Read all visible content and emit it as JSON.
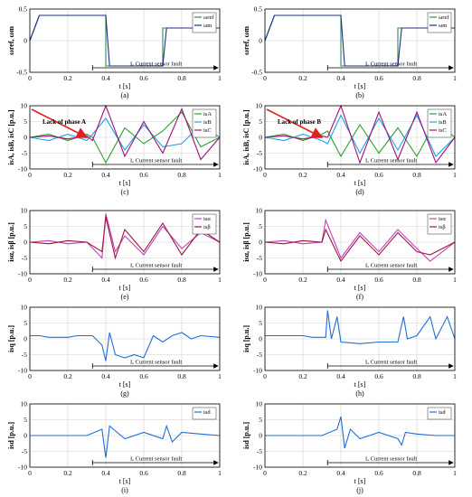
{
  "fault_label": "Iₐ Current sensor fault",
  "chart_data": [
    {
      "panel": "(a)",
      "type": "line",
      "xlabel": "t [s]",
      "ylabel": "ωref, ωm",
      "xlim": [
        0,
        1
      ],
      "ylim": [
        -0.5,
        0.5
      ],
      "xticks": [
        "0",
        "0.2",
        "0.4",
        "0.6",
        "0.8",
        "1"
      ],
      "yticks": [
        "0.5",
        "0",
        "-0.5"
      ],
      "legend": [
        "ωref",
        "ωm"
      ],
      "legend_position": "top-right",
      "annotation": "Iₐ Current sensor fault",
      "fault_interval": [
        0.33,
        1.0
      ],
      "series": [
        {
          "name": "ωref",
          "color": "#2e8b57",
          "x": [
            0,
            0.05,
            0.4,
            0.4,
            0.7,
            0.7,
            1.0
          ],
          "y": [
            0,
            0.4,
            0.4,
            -0.4,
            -0.4,
            0.2,
            0.2
          ]
        },
        {
          "name": "ωm",
          "color": "#1f2d8a",
          "x": [
            0,
            0.05,
            0.4,
            0.42,
            0.7,
            0.72,
            1.0
          ],
          "y": [
            0,
            0.4,
            0.4,
            -0.4,
            -0.4,
            0.2,
            0.2
          ]
        }
      ]
    },
    {
      "panel": "(b)",
      "type": "line",
      "xlabel": "t [s]",
      "ylabel": "ωref, ωm",
      "xlim": [
        0,
        1
      ],
      "ylim": [
        -0.5,
        0.5
      ],
      "xticks": [
        "0",
        "0.2",
        "0.4",
        "0.6",
        "0.8",
        "1"
      ],
      "yticks": [
        "0.5",
        "0",
        "-0.5"
      ],
      "legend": [
        "ωref",
        "ωm"
      ],
      "legend_position": "top-right",
      "annotation": "Iₐ Current sensor fault",
      "fault_interval": [
        0.33,
        1.0
      ],
      "series": [
        {
          "name": "ωref",
          "color": "#2e8b57",
          "x": [
            0,
            0.05,
            0.4,
            0.4,
            0.7,
            0.7,
            1.0
          ],
          "y": [
            0,
            0.4,
            0.4,
            -0.4,
            -0.4,
            0.2,
            0.2
          ]
        },
        {
          "name": "ωm",
          "color": "#1f2d8a",
          "x": [
            0,
            0.05,
            0.4,
            0.42,
            0.7,
            0.72,
            1.0
          ],
          "y": [
            0,
            0.4,
            0.4,
            -0.4,
            -0.4,
            0.2,
            0.2
          ]
        }
      ]
    },
    {
      "panel": "(c)",
      "type": "line",
      "xlabel": "t [s]",
      "ylabel": "isA, isB, isC [p.u.]",
      "xlim": [
        0,
        1
      ],
      "ylim": [
        -10,
        10
      ],
      "xticks": [
        "0",
        "0.2",
        "0.4",
        "0.6",
        "0.8",
        "1"
      ],
      "yticks": [
        "10",
        "5",
        "0",
        "-5",
        "-10"
      ],
      "legend": [
        "isA",
        "isB",
        "isC"
      ],
      "legend_position": "top-right",
      "annotation": "Iₐ Current sensor fault",
      "fault_interval": [
        0.33,
        1.0
      ],
      "note": "Lack of phase A",
      "series": [
        {
          "name": "isA",
          "color": "#2e9e2e",
          "x": [
            0,
            0.1,
            0.2,
            0.3,
            0.33,
            0.4,
            0.5,
            0.6,
            0.7,
            0.8,
            0.9,
            1.0
          ],
          "y": [
            0,
            1,
            -1,
            1,
            0,
            -8,
            3,
            -2,
            2,
            8,
            -3,
            0
          ]
        },
        {
          "name": "isB",
          "color": "#1ba5e0",
          "x": [
            0,
            0.1,
            0.2,
            0.3,
            0.33,
            0.4,
            0.5,
            0.6,
            0.7,
            0.8,
            0.9,
            1.0
          ],
          "y": [
            0,
            -1,
            1,
            -1,
            1,
            6,
            -4,
            4,
            -3,
            -2,
            4,
            0
          ]
        },
        {
          "name": "isC",
          "color": "#a4107a",
          "x": [
            0,
            0.1,
            0.2,
            0.3,
            0.33,
            0.4,
            0.5,
            0.6,
            0.7,
            0.8,
            0.9,
            1.0
          ],
          "y": [
            0,
            0.5,
            -0.5,
            0.5,
            -1,
            10,
            -6,
            5,
            -5,
            9,
            -7,
            0
          ]
        }
      ]
    },
    {
      "panel": "(d)",
      "type": "line",
      "xlabel": "t [s]",
      "ylabel": "isA, isB, isC [p.u.]",
      "xlim": [
        0,
        1
      ],
      "ylim": [
        -10,
        10
      ],
      "xticks": [
        "0",
        "0.2",
        "0.4",
        "0.6",
        "0.8",
        "1"
      ],
      "yticks": [
        "10",
        "5",
        "0",
        "-5",
        "-10"
      ],
      "legend": [
        "isA",
        "isB",
        "isC"
      ],
      "legend_position": "top-right",
      "annotation": "Iₐ Current sensor fault",
      "fault_interval": [
        0.33,
        1.0
      ],
      "note": "Lack of phase B",
      "series": [
        {
          "name": "isA",
          "color": "#2e9e2e",
          "x": [
            0,
            0.1,
            0.2,
            0.3,
            0.33,
            0.4,
            0.5,
            0.6,
            0.7,
            0.8,
            0.9,
            1.0
          ],
          "y": [
            0,
            1,
            -1,
            1,
            2,
            -6,
            4,
            -5,
            3,
            -6,
            5,
            0
          ]
        },
        {
          "name": "isB",
          "color": "#1ba5e0",
          "x": [
            0,
            0.1,
            0.2,
            0.3,
            0.33,
            0.4,
            0.5,
            0.6,
            0.7,
            0.8,
            0.9,
            1.0
          ],
          "y": [
            0,
            -1,
            1,
            -1,
            -2,
            7,
            -5,
            6,
            -4,
            7,
            -6,
            0
          ]
        },
        {
          "name": "isC",
          "color": "#a4107a",
          "x": [
            0,
            0.1,
            0.2,
            0.3,
            0.33,
            0.4,
            0.5,
            0.6,
            0.7,
            0.8,
            0.9,
            1.0
          ],
          "y": [
            0,
            0.5,
            -0.5,
            0.5,
            0,
            10,
            -8,
            8,
            -7,
            8,
            -8,
            0
          ]
        }
      ]
    },
    {
      "panel": "(e)",
      "type": "line",
      "xlabel": "t [s]",
      "ylabel": "isα, isβ [p.u.]",
      "xlim": [
        0,
        1
      ],
      "ylim": [
        -10,
        10
      ],
      "xticks": [
        "0",
        "0.2",
        "0.4",
        "0.6",
        "0.8",
        "1"
      ],
      "yticks": [
        "10",
        "5",
        "0",
        "-5",
        "-10"
      ],
      "legend": [
        "isα",
        "isβ"
      ],
      "legend_position": "top-right",
      "annotation": "Iₐ Current sensor fault",
      "fault_interval": [
        0.33,
        1.0
      ],
      "series": [
        {
          "name": "isα",
          "color": "#c040c0",
          "x": [
            0,
            0.1,
            0.2,
            0.3,
            0.38,
            0.4,
            0.45,
            0.5,
            0.6,
            0.7,
            0.8,
            0.9,
            1.0
          ],
          "y": [
            0,
            0.5,
            -0.5,
            0,
            -5,
            9,
            -3,
            2,
            -4,
            5,
            -2,
            3,
            0
          ]
        },
        {
          "name": "isβ",
          "color": "#a0153e",
          "x": [
            0,
            0.1,
            0.2,
            0.3,
            0.38,
            0.4,
            0.45,
            0.5,
            0.6,
            0.7,
            0.8,
            0.9,
            1.0
          ],
          "y": [
            0,
            -0.5,
            0.5,
            0,
            -3,
            8,
            -5,
            4,
            -3,
            6,
            -4,
            4,
            0
          ]
        }
      ]
    },
    {
      "panel": "(f)",
      "type": "line",
      "xlabel": "t [s]",
      "ylabel": "isα, isβ [p.u.]",
      "xlim": [
        0,
        1
      ],
      "ylim": [
        -10,
        10
      ],
      "xticks": [
        "0",
        "0.2",
        "0.4",
        "0.6",
        "0.8",
        "1"
      ],
      "yticks": [
        "10",
        "5",
        "0",
        "-5",
        "-10"
      ],
      "legend": [
        "isα",
        "isβ"
      ],
      "legend_position": "top-right",
      "annotation": "Iₐ Current sensor fault",
      "fault_interval": [
        0.33,
        1.0
      ],
      "series": [
        {
          "name": "isα",
          "color": "#c040c0",
          "x": [
            0,
            0.1,
            0.2,
            0.3,
            0.32,
            0.4,
            0.5,
            0.6,
            0.7,
            0.8,
            0.87,
            1.0
          ],
          "y": [
            0,
            0.5,
            -0.5,
            0,
            7,
            -5,
            3,
            -3,
            4,
            -2,
            -6,
            0
          ]
        },
        {
          "name": "isβ",
          "color": "#a0153e",
          "x": [
            0,
            0.1,
            0.2,
            0.3,
            0.32,
            0.4,
            0.5,
            0.6,
            0.7,
            0.8,
            0.87,
            1.0
          ],
          "y": [
            0,
            -0.5,
            0.5,
            0,
            4,
            -6,
            2,
            -4,
            3,
            -3,
            -4,
            0
          ]
        }
      ]
    },
    {
      "panel": "(g)",
      "type": "line",
      "xlabel": "t [s]",
      "ylabel": "isq [p.u.]",
      "xlim": [
        0,
        1
      ],
      "ylim": [
        -10,
        10
      ],
      "xticks": [
        "0",
        "0.2",
        "0.4",
        "0.6",
        "0.8",
        "1"
      ],
      "yticks": [
        "10",
        "5",
        "0",
        "-5",
        "-10"
      ],
      "legend": [],
      "annotation": "Iₐ Current sensor fault",
      "fault_interval": [
        0.33,
        1.0
      ],
      "series": [
        {
          "name": "",
          "color": "#1f6fd6",
          "x": [
            0,
            0.05,
            0.1,
            0.2,
            0.25,
            0.33,
            0.38,
            0.4,
            0.42,
            0.45,
            0.5,
            0.55,
            0.6,
            0.65,
            0.7,
            0.75,
            0.8,
            0.85,
            0.9,
            1.0
          ],
          "y": [
            1,
            1,
            0.5,
            0.5,
            1,
            1,
            -2,
            -7,
            2,
            -5,
            -6,
            -5,
            -6,
            1,
            -1,
            1,
            2,
            0,
            1,
            0.5
          ]
        }
      ]
    },
    {
      "panel": "(h)",
      "type": "line",
      "xlabel": "t [s]",
      "ylabel": "isq [p.u.]",
      "xlim": [
        0,
        1
      ],
      "ylim": [
        -10,
        10
      ],
      "xticks": [
        "0",
        "0.2",
        "0.4",
        "0.6",
        "0.8",
        "1"
      ],
      "yticks": [
        "10",
        "5",
        "0",
        "-5",
        "-10"
      ],
      "legend": [],
      "annotation": "Iₐ Current sensor fault",
      "fault_interval": [
        0.33,
        1.0
      ],
      "series": [
        {
          "name": "",
          "color": "#1f6fd6",
          "x": [
            0,
            0.2,
            0.25,
            0.32,
            0.33,
            0.35,
            0.38,
            0.4,
            0.5,
            0.6,
            0.7,
            0.73,
            0.75,
            0.8,
            0.87,
            0.9,
            0.96,
            1.0
          ],
          "y": [
            1,
            1,
            0.5,
            0.5,
            9,
            0,
            7,
            -1,
            -1.5,
            -1,
            -1,
            7,
            0,
            1,
            7,
            0,
            7,
            0
          ]
        }
      ]
    },
    {
      "panel": "(i)",
      "type": "line",
      "xlabel": "t [s]",
      "ylabel": "isd [p.u.]",
      "xlim": [
        0,
        1
      ],
      "ylim": [
        -10,
        10
      ],
      "xticks": [
        "0",
        "0.2",
        "0.4",
        "0.6",
        "0.8",
        "1"
      ],
      "yticks": [
        "10",
        "5",
        "0",
        "-5",
        "-10"
      ],
      "legend": [
        "isd"
      ],
      "legend_position": "top-right",
      "annotation": "Iₐ Current sensor fault",
      "fault_interval": [
        0.33,
        1.0
      ],
      "series": [
        {
          "name": "isd",
          "color": "#1f6fd6",
          "x": [
            0,
            0.1,
            0.2,
            0.3,
            0.38,
            0.4,
            0.42,
            0.5,
            0.6,
            0.7,
            0.72,
            0.75,
            0.8,
            0.9,
            1.0
          ],
          "y": [
            0,
            0,
            0,
            0,
            2,
            -7,
            3,
            -1,
            1,
            -1,
            3,
            -2,
            1,
            0.5,
            0
          ]
        }
      ]
    },
    {
      "panel": "(j)",
      "type": "line",
      "xlabel": "t [s]",
      "ylabel": "isd [p.u.]",
      "xlim": [
        0,
        1
      ],
      "ylim": [
        -10,
        10
      ],
      "xticks": [
        "0",
        "0.2",
        "0.4",
        "0.6",
        "0.8",
        "1"
      ],
      "yticks": [
        "10",
        "5",
        "0",
        "-5",
        "-10"
      ],
      "legend": [
        "isd"
      ],
      "legend_position": "top-right",
      "annotation": "Iₐ Current sensor fault",
      "fault_interval": [
        0.33,
        1.0
      ],
      "series": [
        {
          "name": "isd",
          "color": "#1f6fd6",
          "x": [
            0,
            0.1,
            0.2,
            0.3,
            0.38,
            0.4,
            0.42,
            0.45,
            0.5,
            0.6,
            0.7,
            0.72,
            0.74,
            0.8,
            0.9,
            1.0
          ],
          "y": [
            0,
            0,
            0,
            0,
            2,
            6,
            -4,
            2,
            -1,
            1,
            -1,
            -3,
            1,
            0.5,
            0,
            0
          ]
        }
      ]
    }
  ]
}
